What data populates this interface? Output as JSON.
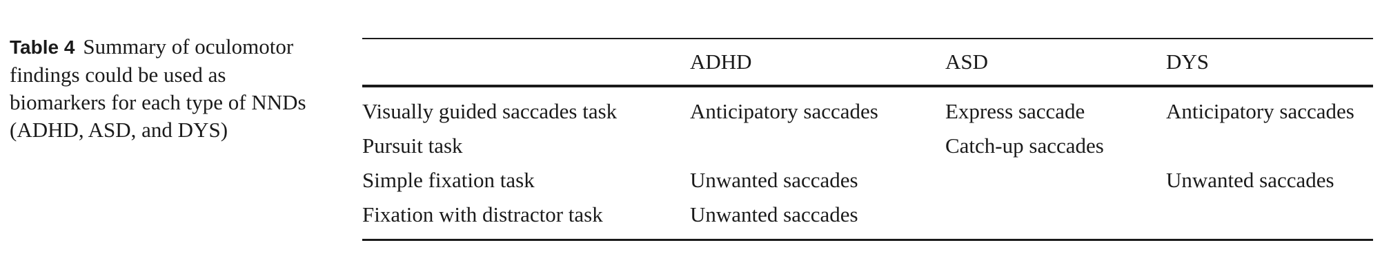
{
  "caption": {
    "label": "Table 4",
    "text": "Summary of oculomotor findings could be used as biomarkers for each type of NNDs (ADHD, ASD, and DYS)"
  },
  "table": {
    "headers": [
      "",
      "ADHD",
      "ASD",
      "DYS"
    ],
    "rows": [
      [
        "Visually guided saccades task",
        "Anticipatory saccades",
        "Express saccade",
        "Anticipatory saccades"
      ],
      [
        "Pursuit task",
        "",
        "Catch-up saccades",
        ""
      ],
      [
        "Simple fixation task",
        "Unwanted saccades",
        "",
        "Unwanted saccades"
      ],
      [
        "Fixation with distractor task",
        "Unwanted saccades",
        "",
        ""
      ]
    ]
  }
}
